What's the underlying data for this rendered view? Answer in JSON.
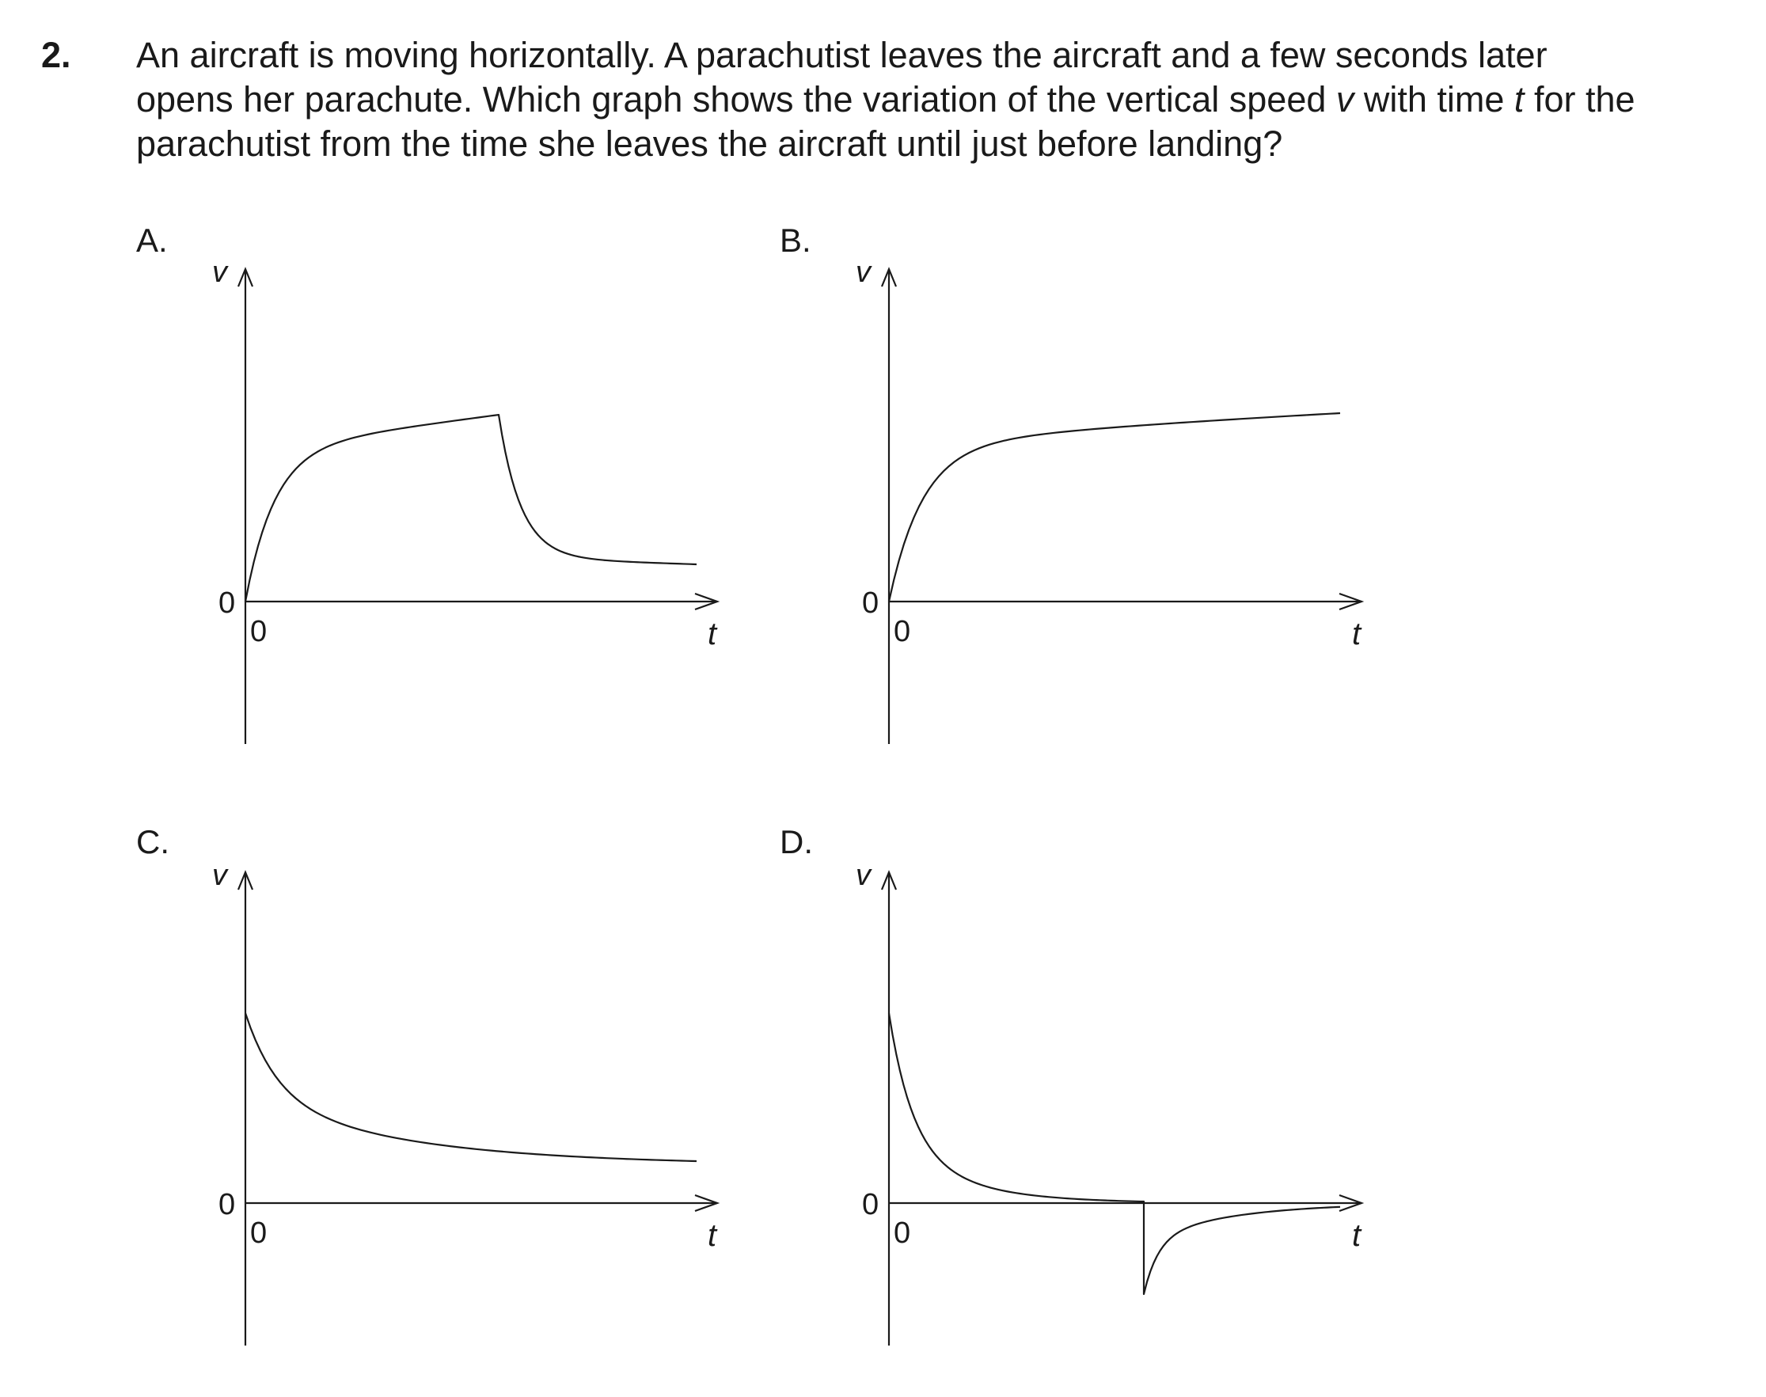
{
  "question": {
    "number": "2.",
    "lines": [
      [
        "An aircraft is moving horizontally.  A parachutist leaves the aircraft and a few seconds later"
      ],
      [
        "opens her parachute.  Which graph shows the variation of the vertical speed ",
        {
          "i": "v"
        },
        " with time ",
        {
          "i": "t"
        },
        " for the"
      ],
      [
        "parachutist from the time she leaves the aircraft until just before landing?"
      ]
    ]
  },
  "options": [
    {
      "label": "A.",
      "ylabel": "v",
      "xlabel": "t",
      "origin_y": "0",
      "origin_x": "0"
    },
    {
      "label": "B.",
      "ylabel": "v",
      "xlabel": "t",
      "origin_y": "0",
      "origin_x": "0"
    },
    {
      "label": "C.",
      "ylabel": "v",
      "xlabel": "t",
      "origin_y": "0",
      "origin_x": "0"
    },
    {
      "label": "D.",
      "ylabel": "v",
      "xlabel": "t",
      "origin_y": "0",
      "origin_x": "0"
    }
  ],
  "curve_shapes": {
    "A": "rises rapidly from 0 toward a terminal value, drops sharply when the parachute opens, then levels off at a lower value",
    "B": "rises rapidly from 0 and approaches a terminal value",
    "C": "starts at a high value and decreases toward a low constant value",
    "D": "decreases from a high value to zero, jumps to a negative value, then returns toward zero"
  }
}
